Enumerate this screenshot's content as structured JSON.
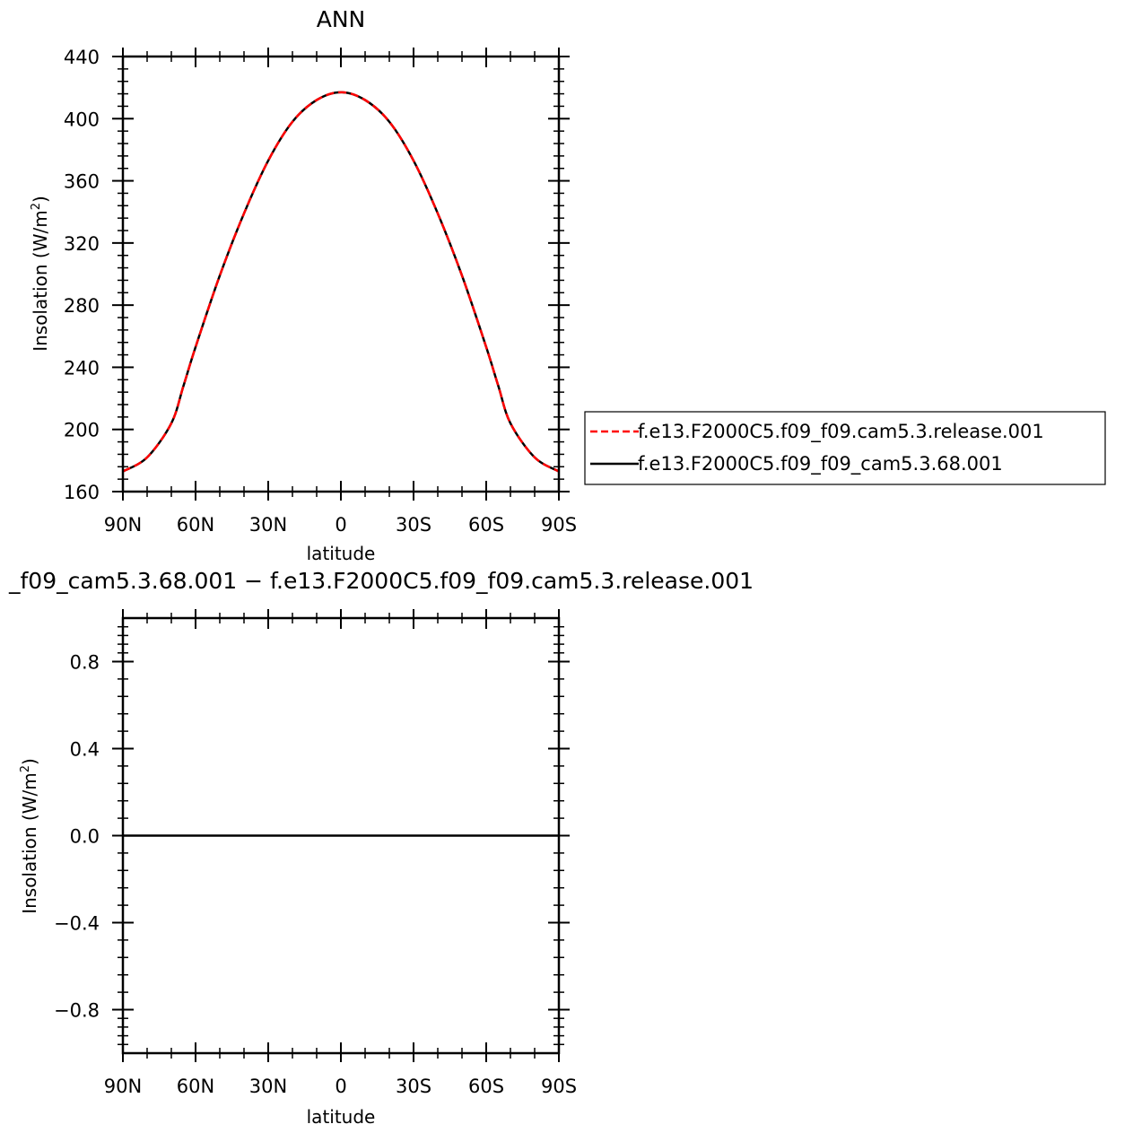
{
  "chart_data": [
    {
      "type": "line",
      "title": "ANN",
      "xlabel": "latitude",
      "ylabel": "Insolation  (W/m",
      "ylabel_sup": "2",
      "ylabel_close": ")",
      "xlim": [
        -90,
        90
      ],
      "ylim": [
        160,
        440
      ],
      "x_reversed": true,
      "xticks": [
        -90,
        -60,
        -30,
        0,
        30,
        60,
        90
      ],
      "xtick_labels": [
        "90N",
        "60N",
        "30N",
        "0",
        "30S",
        "60S",
        "90S"
      ],
      "yticks": [
        160,
        200,
        240,
        280,
        320,
        360,
        400,
        440
      ],
      "ytick_labels": [
        "160",
        "200",
        "240",
        "280",
        "320",
        "360",
        "400",
        "440"
      ],
      "x": [
        -90,
        -80,
        -70,
        -65,
        -60,
        -50,
        -40,
        -30,
        -20,
        -10,
        0,
        10,
        20,
        30,
        40,
        50,
        60,
        65,
        70,
        80,
        90
      ],
      "series": [
        {
          "name": "f.e13.F2000C5.f09_f09.cam5.3.release.001",
          "color": "#ff0000",
          "dash": "dashed",
          "values": [
            173,
            182,
            204,
            228,
            253,
            299,
            339,
            373,
            398,
            412,
            417,
            412,
            398,
            373,
            339,
            299,
            253,
            228,
            204,
            182,
            173
          ]
        },
        {
          "name": "f.e13.F2000C5.f09_f09_cam5.3.68.001",
          "color": "#000000",
          "dash": "solid",
          "values": [
            173,
            182,
            204,
            228,
            253,
            299,
            339,
            373,
            398,
            412,
            417,
            412,
            398,
            373,
            339,
            299,
            253,
            228,
            204,
            182,
            173
          ]
        }
      ],
      "legend": "right"
    },
    {
      "type": "line",
      "title": "_f09_cam5.3.68.001  −  f.e13.F2000C5.f09_f09.cam5.3.release.001",
      "xlabel": "latitude",
      "ylabel": "Insolation  (W/m",
      "ylabel_sup": "2",
      "ylabel_close": ")",
      "xlim": [
        -90,
        90
      ],
      "ylim": [
        -1,
        1
      ],
      "x_reversed": true,
      "xticks": [
        -90,
        -60,
        -30,
        0,
        30,
        60,
        90
      ],
      "xtick_labels": [
        "90N",
        "60N",
        "30N",
        "0",
        "30S",
        "60S",
        "90S"
      ],
      "yticks": [
        -0.8,
        -0.4,
        0.0,
        0.4,
        0.8
      ],
      "ytick_labels": [
        "−0.8",
        "−0.4",
        "0.0",
        "0.4",
        "0.8"
      ],
      "x": [
        -90,
        90
      ],
      "series": [
        {
          "color": "#000000",
          "dash": "solid",
          "values": [
            0,
            0
          ]
        }
      ]
    }
  ]
}
